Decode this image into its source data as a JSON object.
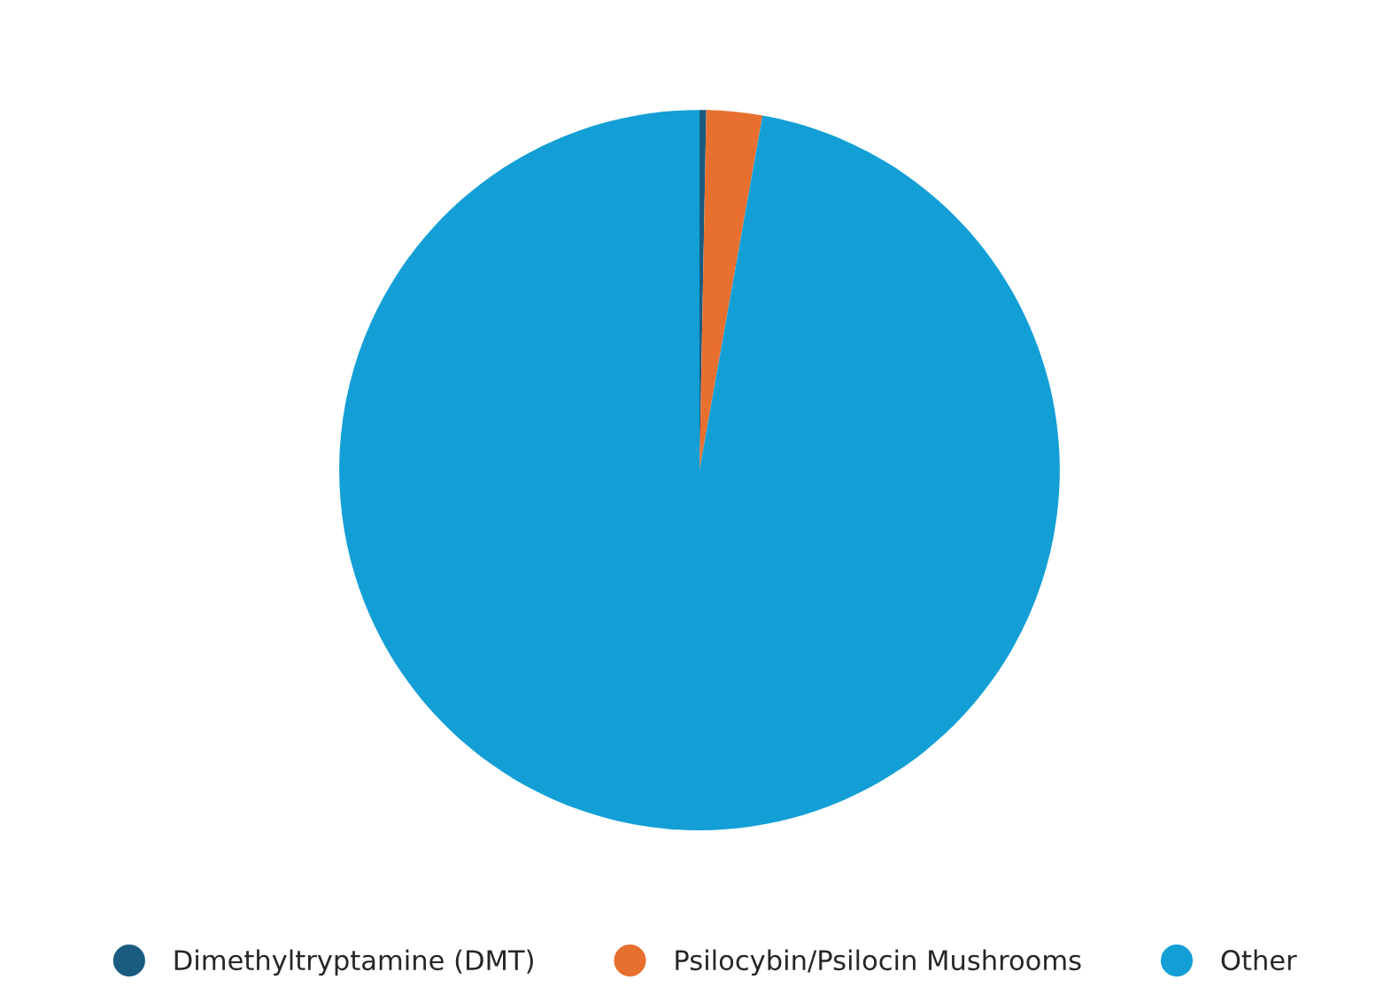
{
  "chart_data": {
    "type": "pie",
    "categories": [
      "Dimethyltryptamine (DMT)",
      "Psilocybin/Psilocin Mushrooms",
      "Other"
    ],
    "values": [
      0.3,
      2.5,
      97.2
    ],
    "colors": [
      "#1a5b80",
      "#e8702f",
      "#139fd6"
    ],
    "legend": "bottom"
  }
}
